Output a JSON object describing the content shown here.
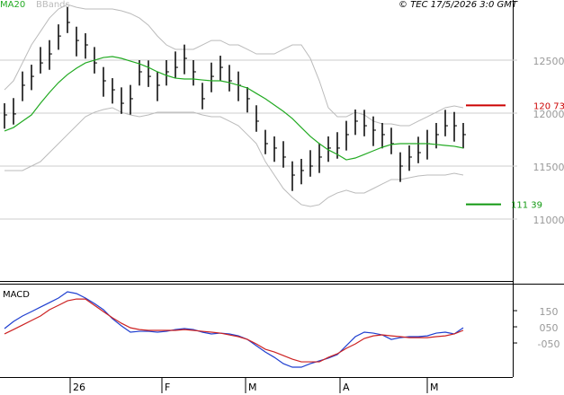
{
  "header": {
    "credit": "© TEC 17/5/2026 3:0 GMT"
  },
  "x_axis_labels": [
    "26",
    "F",
    "M",
    "A",
    "M"
  ],
  "chart_data": [
    {
      "type": "ohlc",
      "high": [
        12093,
        12142,
        12393,
        12457,
        12624,
        12689,
        12838,
        13006,
        12816,
        12754,
        12624,
        12435,
        12330,
        12243,
        12266,
        12500,
        12497,
        12393,
        12500,
        12582,
        12647,
        12500,
        12286,
        12477,
        12542,
        12455,
        12393,
        12246,
        12074,
        11842,
        11780,
        11735,
        11545,
        11568,
        11650,
        11715,
        11780,
        11820,
        11927,
        12034,
        12031,
        11969,
        11907,
        11862,
        11630,
        11695,
        11777,
        11842,
        11907,
        12031,
        12011,
        11907
      ],
      "low": [
        11853,
        11892,
        12113,
        12217,
        12374,
        12409,
        12598,
        12756,
        12536,
        12514,
        12374,
        12155,
        12090,
        11993,
        11986,
        12260,
        12247,
        12113,
        12260,
        12332,
        12367,
        12260,
        12036,
        12197,
        12302,
        12205,
        12113,
        12006,
        11824,
        11612,
        11540,
        11485,
        11265,
        11328,
        11400,
        11435,
        11540,
        11570,
        11647,
        11794,
        11781,
        11689,
        11667,
        11612,
        11350,
        11455,
        11527,
        11562,
        11667,
        11781,
        11731,
        11667
      ],
      "close": [
        11983,
        11992,
        12263,
        12347,
        12474,
        12559,
        12728,
        12856,
        12686,
        12644,
        12474,
        12305,
        12220,
        12093,
        12136,
        12390,
        12347,
        12263,
        12390,
        12432,
        12517,
        12390,
        12136,
        12347,
        12432,
        12305,
        12263,
        12136,
        11924,
        11712,
        11670,
        11585,
        11415,
        11458,
        11500,
        11585,
        11670,
        11670,
        11797,
        11924,
        11881,
        11839,
        11797,
        11712,
        11500,
        11585,
        11627,
        11712,
        11797,
        11881,
        11881,
        11797
      ],
      "bar_color": "#000000",
      "series": [
        {
          "name": "MA20",
          "color": "#22aa22",
          "values": [
            11831,
            11864,
            11924,
            11983,
            12093,
            12195,
            12288,
            12364,
            12424,
            12474,
            12500,
            12525,
            12534,
            12517,
            12491,
            12466,
            12432,
            12390,
            12356,
            12330,
            12322,
            12322,
            12313,
            12305,
            12305,
            12288,
            12263,
            12237,
            12186,
            12136,
            12076,
            12017,
            11949,
            11864,
            11780,
            11712,
            11653,
            11610,
            11559,
            11576,
            11610,
            11644,
            11678,
            11704,
            11712,
            11712,
            11712,
            11712,
            11704,
            11695,
            11687,
            11670
          ]
        },
        {
          "name": "BBands",
          "color": "#bbbbbb",
          "upper": [
            12220,
            12305,
            12474,
            12644,
            12771,
            12898,
            12983,
            13025,
            12999,
            12983,
            12983,
            12983,
            12983,
            12966,
            12940,
            12898,
            12830,
            12728,
            12644,
            12602,
            12602,
            12602,
            12644,
            12686,
            12686,
            12644,
            12644,
            12602,
            12559,
            12559,
            12559,
            12602,
            12644,
            12644,
            12517,
            12305,
            12051,
            11966,
            11966,
            12008,
            11983,
            11924,
            11898,
            11898,
            11881,
            11881,
            11924,
            11966,
            12008,
            12051,
            12068,
            12051
          ],
          "lower": [
            11458,
            11458,
            11458,
            11500,
            11542,
            11627,
            11712,
            11797,
            11881,
            11966,
            12008,
            12034,
            12051,
            12008,
            11983,
            11966,
            11983,
            12008,
            12008,
            12008,
            12008,
            12008,
            11983,
            11966,
            11966,
            11924,
            11881,
            11797,
            11712,
            11542,
            11415,
            11288,
            11204,
            11136,
            11119,
            11136,
            11204,
            11246,
            11272,
            11246,
            11246,
            11288,
            11331,
            11373,
            11373,
            11390,
            11407,
            11415,
            11415,
            11415,
            11432,
            11415
          ]
        }
      ],
      "levels": [
        {
          "value": 12073,
          "label": "120 73",
          "color": "#cc0000"
        },
        {
          "value": 11139,
          "label": "111 39",
          "color": "#119911"
        }
      ],
      "ylim": [
        10415,
        13068
      ],
      "yticks": [
        11000,
        11500,
        12000,
        12500
      ],
      "grid": true
    },
    {
      "type": "line",
      "title": "MACD",
      "series": [
        {
          "color": "#1f3fd0",
          "values": [
            39,
            83,
            117,
            144,
            172,
            200,
            228,
            267,
            256,
            228,
            194,
            156,
            100,
            56,
            17,
            22,
            22,
            17,
            22,
            33,
            39,
            33,
            17,
            6,
            11,
            6,
            -6,
            -28,
            -67,
            -106,
            -139,
            -178,
            -200,
            -200,
            -178,
            -161,
            -144,
            -122,
            -67,
            -11,
            17,
            11,
            0,
            -28,
            -17,
            -11,
            -11,
            -6,
            11,
            17,
            6,
            44
          ]
        },
        {
          "color": "#cc2222",
          "values": [
            6,
            33,
            61,
            89,
            117,
            156,
            183,
            211,
            222,
            222,
            183,
            144,
            106,
            72,
            44,
            33,
            28,
            28,
            28,
            28,
            33,
            28,
            22,
            17,
            11,
            0,
            -11,
            -28,
            -56,
            -89,
            -106,
            -128,
            -150,
            -167,
            -167,
            -167,
            -139,
            -117,
            -83,
            -56,
            -22,
            -6,
            0,
            -6,
            -11,
            -17,
            -17,
            -17,
            -11,
            -6,
            6,
            28
          ]
        }
      ],
      "ylim": [
        -261,
        317
      ],
      "yticks": [
        {
          "value": 150,
          "label": "150"
        },
        {
          "value": 50,
          "label": "050"
        },
        {
          "value": -50,
          "label": "-050"
        }
      ],
      "grid": false
    }
  ]
}
